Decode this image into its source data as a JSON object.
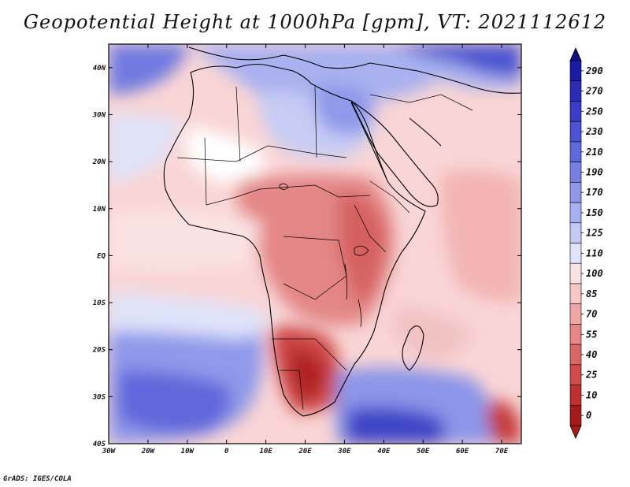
{
  "title": "Geopotential Height at 1000hPa [gpm], VT: 2021112612",
  "credit": "GrADS: IGES/COLA",
  "map": {
    "variable": "Geopotential Height",
    "level": "1000hPa",
    "units": "gpm",
    "valid_time": "2021112612",
    "lon_range": [
      -30,
      75
    ],
    "lat_range": [
      -40,
      45
    ]
  },
  "axes": {
    "x_ticks": [
      {
        "value": -30,
        "label": "30W"
      },
      {
        "value": -20,
        "label": "20W"
      },
      {
        "value": -10,
        "label": "10W"
      },
      {
        "value": 0,
        "label": "0"
      },
      {
        "value": 10,
        "label": "10E"
      },
      {
        "value": 20,
        "label": "20E"
      },
      {
        "value": 30,
        "label": "30E"
      },
      {
        "value": 40,
        "label": "40E"
      },
      {
        "value": 50,
        "label": "50E"
      },
      {
        "value": 60,
        "label": "60E"
      },
      {
        "value": 70,
        "label": "70E"
      }
    ],
    "y_ticks": [
      {
        "value": 40,
        "label": "40N"
      },
      {
        "value": 30,
        "label": "30N"
      },
      {
        "value": 20,
        "label": "20N"
      },
      {
        "value": 10,
        "label": "10N"
      },
      {
        "value": 0,
        "label": "EQ"
      },
      {
        "value": -10,
        "label": "10S"
      },
      {
        "value": -20,
        "label": "20S"
      },
      {
        "value": -30,
        "label": "30S"
      },
      {
        "value": -40,
        "label": "40S"
      }
    ]
  },
  "colorbar": {
    "levels": [
      {
        "label": "290",
        "color": "#1c1aa3"
      },
      {
        "label": "270",
        "color": "#2b2bb4"
      },
      {
        "label": "250",
        "color": "#3a3dc6"
      },
      {
        "label": "230",
        "color": "#4c52d3"
      },
      {
        "label": "210",
        "color": "#5f67dc"
      },
      {
        "label": "190",
        "color": "#7680e3"
      },
      {
        "label": "170",
        "color": "#8e98ea"
      },
      {
        "label": "150",
        "color": "#a7b0f0"
      },
      {
        "label": "125",
        "color": "#c2c9f5"
      },
      {
        "label": "110",
        "color": "#dfe3fa"
      },
      {
        "label": "100",
        "color": "#fbe2e2"
      },
      {
        "label": "85",
        "color": "#f8c6c6"
      },
      {
        "label": "70",
        "color": "#f1a6a6"
      },
      {
        "label": "55",
        "color": "#e78686"
      },
      {
        "label": "40",
        "color": "#db6666"
      },
      {
        "label": "25",
        "color": "#cf4a4a"
      },
      {
        "label": "10",
        "color": "#bf3030"
      },
      {
        "label": "0",
        "color": "#a51b1b"
      }
    ],
    "top_color": "#141282",
    "bottom_color": "#a51b1b"
  }
}
